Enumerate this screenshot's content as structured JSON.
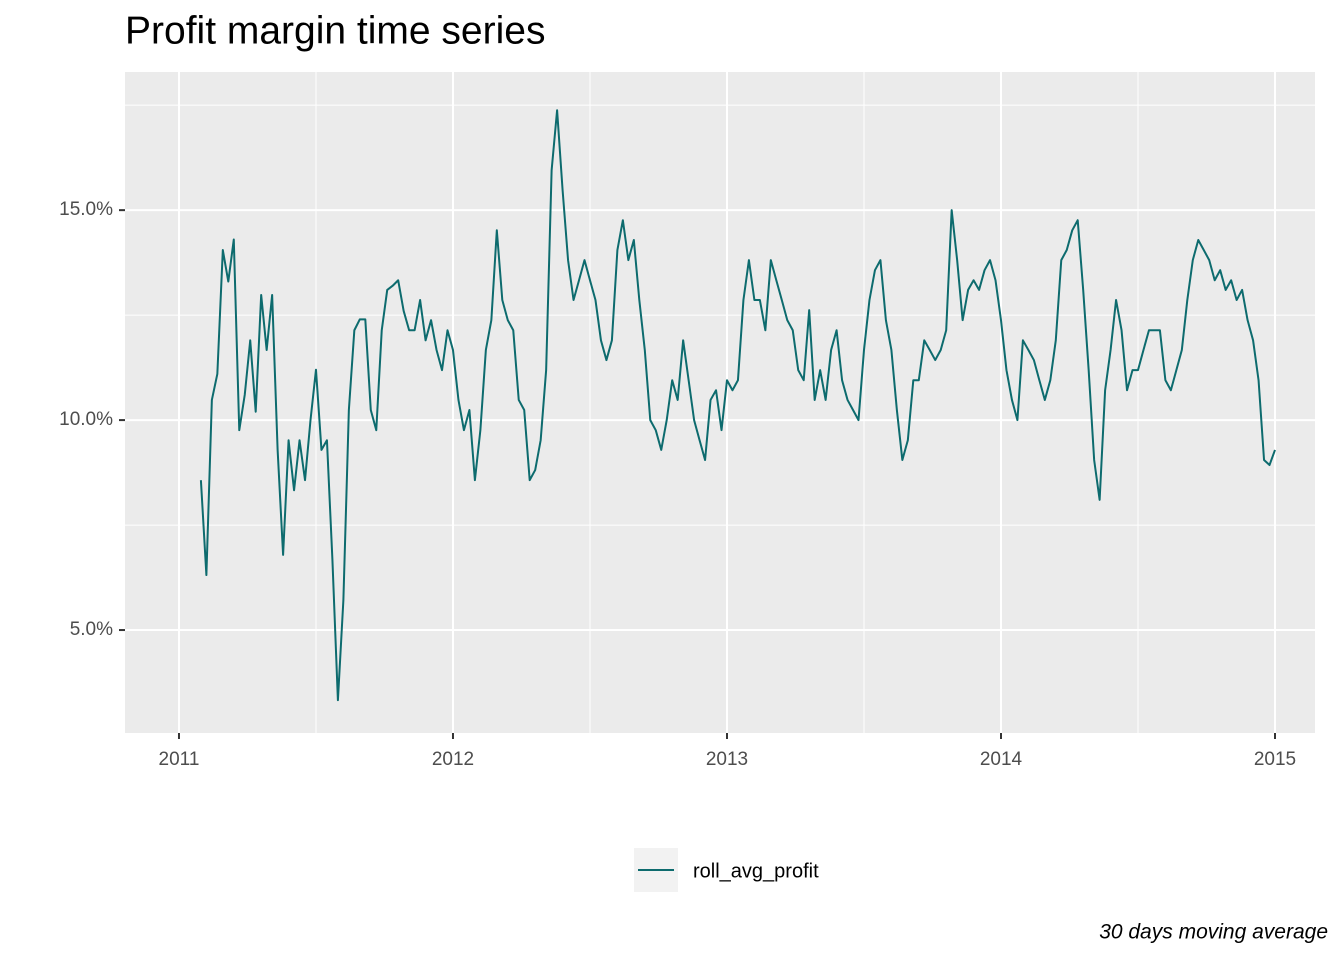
{
  "chart_data": {
    "type": "line",
    "title": "Profit margin time series",
    "caption": "30 days moving average",
    "legend": "bottom",
    "grid": true,
    "xlim": [
      2010.803,
      2015.146
    ],
    "xticks": [
      2011,
      2012,
      2013,
      2014,
      2015
    ],
    "ylim": [
      2.548,
      18.29
    ],
    "yticks": [
      {
        "value": 5,
        "label": "5.0%"
      },
      {
        "value": 10,
        "label": "10.0%"
      },
      {
        "value": 15,
        "label": "15.0%"
      }
    ],
    "x": [
      2011.08,
      2011.1,
      2011.12,
      2011.14,
      2011.16,
      2011.18,
      2011.2,
      2011.22,
      2011.24,
      2011.26,
      2011.28,
      2011.3,
      2011.32,
      2011.34,
      2011.36,
      2011.38,
      2011.4,
      2011.42,
      2011.44,
      2011.46,
      2011.48,
      2011.5,
      2011.52,
      2011.54,
      2011.56,
      2011.58,
      2011.6,
      2011.62,
      2011.64,
      2011.66,
      2011.68,
      2011.7,
      2011.72,
      2011.74,
      2011.76,
      2011.78,
      2011.8,
      2011.82,
      2011.84,
      2011.86,
      2011.88,
      2011.9,
      2011.92,
      2011.94,
      2011.96,
      2011.98,
      2012.0,
      2012.02,
      2012.04,
      2012.06,
      2012.08,
      2012.1,
      2012.12,
      2012.14,
      2012.16,
      2012.18,
      2012.2,
      2012.22,
      2012.24,
      2012.26,
      2012.28,
      2012.3,
      2012.32,
      2012.34,
      2012.36,
      2012.38,
      2012.4,
      2012.42,
      2012.44,
      2012.46,
      2012.48,
      2012.5,
      2012.52,
      2012.54,
      2012.56,
      2012.58,
      2012.6,
      2012.62,
      2012.64,
      2012.66,
      2012.68,
      2012.7,
      2012.72,
      2012.74,
      2012.76,
      2012.78,
      2012.8,
      2012.82,
      2012.84,
      2012.86,
      2012.88,
      2012.9,
      2012.92,
      2012.94,
      2012.96,
      2012.98,
      2013.0,
      2013.02,
      2013.04,
      2013.06,
      2013.08,
      2013.1,
      2013.12,
      2013.14,
      2013.16,
      2013.18,
      2013.2,
      2013.22,
      2013.24,
      2013.26,
      2013.28,
      2013.3,
      2013.32,
      2013.34,
      2013.36,
      2013.38,
      2013.4,
      2013.42,
      2013.44,
      2013.46,
      2013.48,
      2013.5,
      2013.52,
      2013.54,
      2013.56,
      2013.58,
      2013.6,
      2013.62,
      2013.64,
      2013.66,
      2013.68,
      2013.7,
      2013.72,
      2013.74,
      2013.76,
      2013.78,
      2013.8,
      2013.82,
      2013.84,
      2013.86,
      2013.88,
      2013.9,
      2013.92,
      2013.94,
      2013.96,
      2013.98,
      2014.0,
      2014.02,
      2014.04,
      2014.06,
      2014.08,
      2014.1,
      2014.12,
      2014.14,
      2014.16,
      2014.18,
      2014.2,
      2014.22,
      2014.24,
      2014.26,
      2014.28,
      2014.3,
      2014.32,
      2014.34,
      2014.36,
      2014.38,
      2014.4,
      2014.42,
      2014.44,
      2014.46,
      2014.48,
      2014.5,
      2014.52,
      2014.54,
      2014.56,
      2014.58,
      2014.6,
      2014.62,
      2014.64,
      2014.66,
      2014.68,
      2014.7,
      2014.72,
      2014.74,
      2014.76,
      2014.78,
      2014.8,
      2014.82,
      2014.84,
      2014.86,
      2014.88,
      2014.9,
      2014.92,
      2014.94,
      2014.96,
      2014.98,
      2015.0
    ],
    "series": [
      {
        "name": "roll_avg_profit",
        "color": "#0d6b6e",
        "values": [
          8.57,
          6.31,
          10.48,
          11.1,
          14.05,
          13.3,
          14.3,
          9.76,
          10.6,
          11.9,
          10.2,
          12.98,
          11.67,
          12.98,
          9.29,
          6.79,
          9.52,
          8.33,
          9.52,
          8.57,
          10.0,
          11.2,
          9.29,
          9.52,
          6.67,
          3.33,
          5.71,
          10.24,
          12.14,
          12.4,
          12.4,
          10.24,
          9.76,
          12.14,
          13.1,
          13.2,
          13.33,
          12.6,
          12.14,
          12.14,
          12.86,
          11.9,
          12.38,
          11.67,
          11.19,
          12.14,
          11.67,
          10.48,
          9.76,
          10.24,
          8.57,
          9.76,
          11.67,
          12.38,
          14.52,
          12.86,
          12.38,
          12.14,
          10.48,
          10.24,
          8.57,
          8.81,
          9.52,
          11.19,
          15.95,
          17.38,
          15.48,
          13.81,
          12.86,
          13.33,
          13.81,
          13.33,
          12.86,
          11.9,
          11.43,
          11.9,
          14.05,
          14.76,
          13.81,
          14.29,
          12.86,
          11.67,
          10.0,
          9.76,
          9.29,
          10.0,
          10.95,
          10.48,
          11.9,
          10.95,
          10.0,
          9.52,
          9.05,
          10.48,
          10.71,
          9.76,
          10.95,
          10.71,
          10.95,
          12.86,
          13.81,
          12.86,
          12.86,
          12.14,
          13.81,
          13.33,
          12.86,
          12.38,
          12.14,
          11.19,
          10.95,
          12.62,
          10.48,
          11.19,
          10.48,
          11.67,
          12.14,
          10.95,
          10.48,
          10.24,
          10.0,
          11.67,
          12.86,
          13.57,
          13.81,
          12.38,
          11.67,
          10.24,
          9.05,
          9.52,
          10.95,
          10.95,
          11.9,
          11.67,
          11.43,
          11.67,
          12.14,
          15.0,
          13.81,
          12.38,
          13.1,
          13.33,
          13.1,
          13.57,
          13.81,
          13.33,
          12.38,
          11.19,
          10.48,
          10.0,
          11.9,
          11.67,
          11.43,
          10.95,
          10.48,
          10.95,
          11.9,
          13.81,
          14.05,
          14.52,
          14.76,
          13.1,
          11.19,
          9.05,
          8.1,
          10.71,
          11.67,
          12.86,
          12.14,
          10.71,
          11.19,
          11.19,
          11.67,
          12.14,
          12.14,
          12.14,
          10.95,
          10.71,
          11.19,
          11.67,
          12.86,
          13.81,
          14.29,
          14.05,
          13.81,
          13.33,
          13.57,
          13.1,
          13.33,
          12.86,
          13.1,
          12.38,
          11.9,
          10.95,
          9.05,
          8.93,
          9.29
        ]
      }
    ]
  }
}
